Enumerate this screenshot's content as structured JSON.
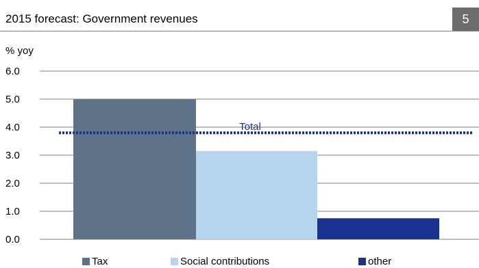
{
  "header": {
    "title": "2015 forecast: Government revenues",
    "page_number": "5"
  },
  "colors": {
    "tax": "#5e7387",
    "social_contributions": "#b6d3ef",
    "other": "#1b3390",
    "total_line": "#1b3390",
    "gridline": "#7f7f7f",
    "badge": "#6d6d6d"
  },
  "chart_data": {
    "type": "bar",
    "title": "",
    "ylabel": "% yoy",
    "xlabel": "",
    "ylim": [
      0,
      6
    ],
    "yticks": [
      0,
      1,
      2,
      3,
      4,
      5,
      6
    ],
    "ytick_labels": [
      "0.0",
      "1.0",
      "2.0",
      "3.0",
      "4.0",
      "5.0",
      "6.0"
    ],
    "categories": [
      "Tax",
      "Social contributions",
      "other"
    ],
    "values": [
      5.0,
      3.15,
      0.75
    ],
    "reference_line": {
      "name": "Total",
      "value": 3.8,
      "style": "dotted"
    },
    "legend": {
      "placement": "bottom",
      "entries": [
        "Tax",
        "Social contributions",
        "other"
      ]
    },
    "grid": true
  }
}
